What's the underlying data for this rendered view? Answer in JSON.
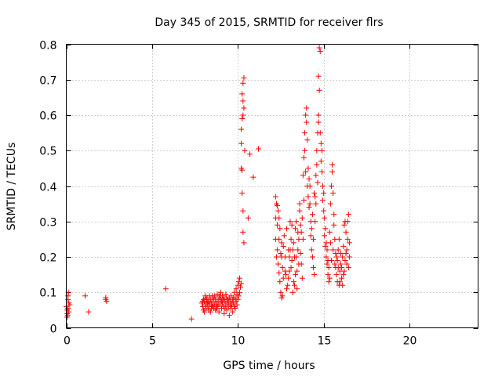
{
  "chart_data": {
    "type": "scatter",
    "title": "Day 345 of 2015, SRMTID for receiver flrs",
    "xlabel": "GPS time / hours",
    "ylabel": "SRMTID / TECUs",
    "xlim": [
      0,
      24
    ],
    "ylim": [
      0,
      0.8
    ],
    "grid": true,
    "marker": "+",
    "color": "#ff0000",
    "x_ticks": [
      {
        "value": 0,
        "label": "0"
      },
      {
        "value": 5,
        "label": "5"
      },
      {
        "value": 10,
        "label": "10"
      },
      {
        "value": 15,
        "label": "15"
      },
      {
        "value": 20,
        "label": "20"
      }
    ],
    "y_ticks": [
      {
        "value": 0,
        "label": "0"
      },
      {
        "value": 0.1,
        "label": "0.1"
      },
      {
        "value": 0.2,
        "label": "0.2"
      },
      {
        "value": 0.3,
        "label": "0.3"
      },
      {
        "value": 0.4,
        "label": "0.4"
      },
      {
        "value": 0.5,
        "label": "0.5"
      },
      {
        "value": 0.6,
        "label": "0.6"
      },
      {
        "value": 0.7,
        "label": "0.7"
      },
      {
        "value": 0.8,
        "label": "0.8"
      }
    ],
    "series": [
      {
        "name": "SRMTID",
        "points": [
          [
            0.0,
            0.06
          ],
          [
            0.05,
            0.05
          ],
          [
            0.05,
            0.04
          ],
          [
            0.08,
            0.035
          ],
          [
            0.1,
            0.055
          ],
          [
            0.1,
            0.09
          ],
          [
            0.12,
            0.1
          ],
          [
            0.15,
            0.07
          ],
          [
            0.15,
            0.045
          ],
          [
            0.2,
            0.065
          ],
          [
            0.05,
            0.03
          ],
          [
            0.1,
            0.08
          ],
          [
            1.1,
            0.09
          ],
          [
            1.3,
            0.045
          ],
          [
            2.3,
            0.08
          ],
          [
            2.35,
            0.075
          ],
          [
            2.3,
            0.085
          ],
          [
            5.8,
            0.11
          ],
          [
            7.3,
            0.025
          ],
          [
            7.9,
            0.07
          ],
          [
            7.95,
            0.06
          ],
          [
            8.0,
            0.08
          ],
          [
            8.0,
            0.05
          ],
          [
            8.05,
            0.075
          ],
          [
            8.1,
            0.065
          ],
          [
            8.1,
            0.09
          ],
          [
            8.15,
            0.055
          ],
          [
            8.2,
            0.07
          ],
          [
            8.2,
            0.085
          ],
          [
            8.25,
            0.06
          ],
          [
            8.3,
            0.075
          ],
          [
            8.3,
            0.05
          ],
          [
            8.35,
            0.065
          ],
          [
            8.4,
            0.08
          ],
          [
            8.4,
            0.045
          ],
          [
            8.45,
            0.07
          ],
          [
            8.5,
            0.06
          ],
          [
            8.5,
            0.09
          ],
          [
            8.55,
            0.075
          ],
          [
            8.6,
            0.055
          ],
          [
            8.6,
            0.085
          ],
          [
            8.65,
            0.065
          ],
          [
            8.7,
            0.08
          ],
          [
            8.7,
            0.05
          ],
          [
            8.75,
            0.07
          ],
          [
            8.8,
            0.095
          ],
          [
            8.8,
            0.06
          ],
          [
            8.85,
            0.075
          ],
          [
            8.9,
            0.085
          ],
          [
            8.9,
            0.045
          ],
          [
            8.95,
            0.065
          ],
          [
            9.0,
            0.08
          ],
          [
            9.0,
            0.1
          ],
          [
            9.05,
            0.055
          ],
          [
            9.1,
            0.07
          ],
          [
            9.1,
            0.09
          ],
          [
            9.15,
            0.06
          ],
          [
            9.2,
            0.085
          ],
          [
            9.2,
            0.04
          ],
          [
            9.25,
            0.075
          ],
          [
            9.3,
            0.065
          ],
          [
            9.3,
            0.095
          ],
          [
            9.35,
            0.05
          ],
          [
            9.4,
            0.08
          ],
          [
            9.4,
            0.07
          ],
          [
            9.45,
            0.06
          ],
          [
            9.5,
            0.085
          ],
          [
            9.5,
            0.035
          ],
          [
            9.55,
            0.075
          ],
          [
            9.6,
            0.055
          ],
          [
            9.6,
            0.09
          ],
          [
            9.65,
            0.065
          ],
          [
            9.7,
            0.08
          ],
          [
            9.7,
            0.045
          ],
          [
            9.75,
            0.07
          ],
          [
            9.8,
            0.1
          ],
          [
            9.8,
            0.06
          ],
          [
            9.85,
            0.085
          ],
          [
            9.9,
            0.075
          ],
          [
            9.9,
            0.11
          ],
          [
            9.95,
            0.095
          ],
          [
            10.0,
            0.12
          ],
          [
            10.0,
            0.08
          ],
          [
            10.05,
            0.13
          ],
          [
            10.1,
            0.1
          ],
          [
            10.1,
            0.14
          ],
          [
            10.15,
            0.115
          ],
          [
            10.2,
            0.125
          ],
          [
            7.95,
            0.075
          ],
          [
            8.05,
            0.045
          ],
          [
            8.15,
            0.08
          ],
          [
            8.25,
            0.07
          ],
          [
            8.35,
            0.09
          ],
          [
            8.45,
            0.055
          ],
          [
            8.55,
            0.065
          ],
          [
            8.65,
            0.09
          ],
          [
            8.75,
            0.055
          ],
          [
            8.85,
            0.065
          ],
          [
            8.95,
            0.09
          ],
          [
            9.05,
            0.075
          ],
          [
            9.15,
            0.08
          ],
          [
            9.25,
            0.055
          ],
          [
            9.35,
            0.085
          ],
          [
            9.45,
            0.075
          ],
          [
            9.55,
            0.065
          ],
          [
            9.65,
            0.07
          ],
          [
            9.75,
            0.085
          ],
          [
            9.85,
            0.055
          ],
          [
            9.95,
            0.065
          ],
          [
            10.05,
            0.09
          ],
          [
            10.2,
            0.45
          ],
          [
            10.25,
            0.445
          ],
          [
            10.25,
            0.38
          ],
          [
            10.3,
            0.33
          ],
          [
            10.3,
            0.27
          ],
          [
            10.35,
            0.24
          ],
          [
            10.2,
            0.56
          ],
          [
            10.25,
            0.59
          ],
          [
            10.2,
            0.52
          ],
          [
            10.3,
            0.69
          ],
          [
            10.35,
            0.705
          ],
          [
            10.3,
            0.64
          ],
          [
            10.35,
            0.62
          ],
          [
            10.25,
            0.66
          ],
          [
            10.3,
            0.6
          ],
          [
            10.4,
            0.5
          ],
          [
            10.6,
            0.31
          ],
          [
            10.7,
            0.49
          ],
          [
            10.9,
            0.425
          ],
          [
            11.2,
            0.505
          ],
          [
            12.2,
            0.37
          ],
          [
            12.25,
            0.35
          ],
          [
            12.3,
            0.345
          ],
          [
            12.35,
            0.33
          ],
          [
            12.2,
            0.31
          ],
          [
            12.3,
            0.29
          ],
          [
            12.4,
            0.31
          ],
          [
            12.2,
            0.25
          ],
          [
            12.25,
            0.2
          ],
          [
            12.3,
            0.22
          ],
          [
            12.35,
            0.18
          ],
          [
            12.4,
            0.155
          ],
          [
            12.45,
            0.13
          ],
          [
            12.5,
            0.1
          ],
          [
            12.55,
            0.085
          ],
          [
            12.6,
            0.09
          ],
          [
            12.4,
            0.25
          ],
          [
            12.5,
            0.21
          ],
          [
            12.55,
            0.2
          ],
          [
            12.6,
            0.17
          ],
          [
            12.65,
            0.23
          ],
          [
            12.7,
            0.26
          ],
          [
            12.75,
            0.2
          ],
          [
            12.8,
            0.15
          ],
          [
            12.85,
            0.11
          ],
          [
            12.9,
            0.12
          ],
          [
            12.95,
            0.14
          ],
          [
            13.0,
            0.2
          ],
          [
            13.0,
            0.16
          ],
          [
            13.05,
            0.22
          ],
          [
            13.1,
            0.17
          ],
          [
            13.1,
            0.25
          ],
          [
            13.15,
            0.29
          ],
          [
            13.2,
            0.22
          ],
          [
            13.2,
            0.1
          ],
          [
            13.25,
            0.13
          ],
          [
            13.3,
            0.12
          ],
          [
            13.3,
            0.2
          ],
          [
            13.35,
            0.28
          ],
          [
            13.4,
            0.3
          ],
          [
            13.4,
            0.2
          ],
          [
            13.45,
            0.16
          ],
          [
            13.5,
            0.27
          ],
          [
            13.5,
            0.22
          ],
          [
            13.55,
            0.25
          ],
          [
            13.6,
            0.35
          ],
          [
            13.6,
            0.33
          ],
          [
            13.65,
            0.29
          ],
          [
            13.7,
            0.27
          ],
          [
            13.7,
            0.18
          ],
          [
            13.75,
            0.14
          ],
          [
            13.8,
            0.25
          ],
          [
            13.8,
            0.43
          ],
          [
            13.85,
            0.48
          ],
          [
            13.9,
            0.5
          ],
          [
            13.9,
            0.55
          ],
          [
            13.95,
            0.6
          ],
          [
            14.0,
            0.62
          ],
          [
            14.0,
            0.58
          ],
          [
            14.05,
            0.53
          ],
          [
            14.1,
            0.45
          ],
          [
            14.1,
            0.37
          ],
          [
            14.15,
            0.42
          ],
          [
            14.2,
            0.4
          ],
          [
            14.2,
            0.35
          ],
          [
            14.25,
            0.3
          ],
          [
            14.3,
            0.28
          ],
          [
            14.3,
            0.22
          ],
          [
            14.35,
            0.2
          ],
          [
            14.4,
            0.25
          ],
          [
            14.4,
            0.17
          ],
          [
            14.45,
            0.15
          ],
          [
            14.5,
            0.3
          ],
          [
            14.5,
            0.37
          ],
          [
            14.55,
            0.43
          ],
          [
            14.6,
            0.46
          ],
          [
            14.6,
            0.5
          ],
          [
            14.65,
            0.55
          ],
          [
            14.7,
            0.58
          ],
          [
            14.7,
            0.6
          ],
          [
            14.75,
            0.79
          ],
          [
            14.8,
            0.78
          ],
          [
            14.7,
            0.71
          ],
          [
            14.75,
            0.67
          ],
          [
            14.8,
            0.55
          ],
          [
            14.85,
            0.52
          ],
          [
            14.9,
            0.5
          ],
          [
            14.9,
            0.44
          ],
          [
            14.95,
            0.4
          ],
          [
            15.0,
            0.38
          ],
          [
            15.0,
            0.33
          ],
          [
            15.05,
            0.31
          ],
          [
            15.1,
            0.28
          ],
          [
            15.1,
            0.23
          ],
          [
            15.15,
            0.2
          ],
          [
            15.2,
            0.18
          ],
          [
            15.2,
            0.22
          ],
          [
            15.25,
            0.15
          ],
          [
            15.3,
            0.13
          ],
          [
            15.3,
            0.17
          ],
          [
            15.35,
            0.27
          ],
          [
            15.4,
            0.24
          ],
          [
            15.4,
            0.35
          ],
          [
            15.45,
            0.4
          ],
          [
            15.5,
            0.44
          ],
          [
            15.5,
            0.46
          ],
          [
            15.55,
            0.38
          ],
          [
            15.6,
            0.32
          ],
          [
            15.6,
            0.29
          ],
          [
            15.65,
            0.25
          ],
          [
            15.7,
            0.21
          ],
          [
            15.7,
            0.17
          ],
          [
            15.75,
            0.15
          ],
          [
            15.8,
            0.13
          ],
          [
            15.8,
            0.19
          ],
          [
            15.85,
            0.22
          ],
          [
            15.9,
            0.25
          ],
          [
            15.9,
            0.12
          ],
          [
            15.95,
            0.16
          ],
          [
            16.0,
            0.18
          ],
          [
            16.0,
            0.21
          ],
          [
            16.05,
            0.14
          ],
          [
            16.1,
            0.12
          ],
          [
            16.1,
            0.2
          ],
          [
            16.15,
            0.23
          ],
          [
            16.2,
            0.16
          ],
          [
            16.2,
            0.29
          ],
          [
            16.25,
            0.3
          ],
          [
            16.3,
            0.27
          ],
          [
            16.3,
            0.21
          ],
          [
            16.35,
            0.18
          ],
          [
            16.4,
            0.3
          ],
          [
            16.4,
            0.25
          ],
          [
            16.45,
            0.32
          ],
          [
            16.5,
            0.2
          ],
          [
            16.5,
            0.24
          ],
          [
            12.45,
            0.28
          ],
          [
            12.55,
            0.24
          ],
          [
            12.65,
            0.14
          ],
          [
            12.75,
            0.16
          ],
          [
            12.85,
            0.28
          ],
          [
            12.95,
            0.22
          ],
          [
            13.05,
            0.3
          ],
          [
            13.15,
            0.19
          ],
          [
            13.25,
            0.24
          ],
          [
            13.35,
            0.15
          ],
          [
            13.45,
            0.11
          ],
          [
            13.55,
            0.18
          ],
          [
            13.65,
            0.21
          ],
          [
            13.75,
            0.31
          ],
          [
            13.85,
            0.36
          ],
          [
            13.95,
            0.44
          ],
          [
            14.05,
            0.4
          ],
          [
            14.15,
            0.34
          ],
          [
            14.25,
            0.26
          ],
          [
            14.35,
            0.32
          ],
          [
            14.45,
            0.38
          ],
          [
            14.55,
            0.35
          ],
          [
            14.65,
            0.41
          ],
          [
            14.85,
            0.47
          ],
          [
            14.95,
            0.36
          ],
          [
            15.05,
            0.26
          ],
          [
            15.15,
            0.24
          ],
          [
            15.25,
            0.19
          ],
          [
            15.35,
            0.14
          ],
          [
            15.45,
            0.19
          ],
          [
            15.55,
            0.22
          ],
          [
            15.65,
            0.18
          ],
          [
            15.75,
            0.2
          ],
          [
            15.85,
            0.17
          ],
          [
            15.95,
            0.13
          ],
          [
            16.05,
            0.17
          ],
          [
            16.15,
            0.15
          ],
          [
            16.25,
            0.19
          ],
          [
            16.35,
            0.22
          ],
          [
            16.45,
            0.17
          ]
        ]
      }
    ]
  }
}
